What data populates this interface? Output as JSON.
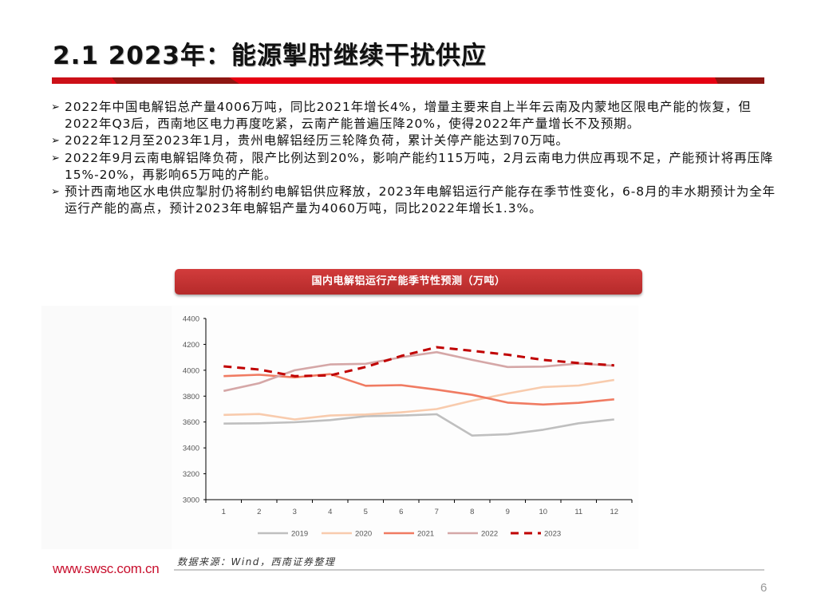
{
  "slide": {
    "title": "2.1 2023年：能源掣肘继续干扰供应",
    "page_number": "6",
    "colors": {
      "accent_red": "#e60012",
      "dark_red": "#8e1612",
      "banner_red": "#c43333",
      "url_red": "#c8102e"
    }
  },
  "bullets": [
    {
      "marker": "➢",
      "text": "2022年中国电解铝总产量4006万吨，同比2021年增长4%，增量主要来自上半年云南及内蒙地区限电产能的恢复，但2022年Q3后，西南地区电力再度吃紧，云南产能普遍压降20%，使得2022年产量增长不及预期。"
    },
    {
      "marker": "➢",
      "text": "2022年12月至2023年1月，贵州电解铝经历三轮降负荷，累计关停产能达到70万吨。"
    },
    {
      "marker": "➢",
      "text": "2022年9月云南电解铝降负荷，限产比例达到20%，影响产能约115万吨，2月云南电力供应再现不足，产能预计将再压降15%-20%，再影响65万吨的产能。"
    },
    {
      "marker": "➢",
      "text": "预计西南地区水电供应掣肘仍将制约电解铝供应释放，2023年电解铝运行产能存在季节性变化，6-8月的丰水期预计为全年运行产能的高点，预计2023年电解铝产量为4060万吨，同比2022年增长1.3%。"
    }
  ],
  "chart_data": {
    "type": "line",
    "title": "国内电解铝运行产能季节性预测（万吨）",
    "xlabel": "",
    "ylabel": "",
    "x": [
      "1",
      "2",
      "3",
      "4",
      "5",
      "6",
      "7",
      "8",
      "9",
      "10",
      "11",
      "12"
    ],
    "ylim": [
      3000,
      4400
    ],
    "yticks": [
      3000,
      3200,
      3400,
      3600,
      3800,
      4000,
      4200,
      4400
    ],
    "grid": false,
    "legend_position": "bottom",
    "series": [
      {
        "name": "2019",
        "color": "#bfbfbf",
        "dash": false,
        "values": [
          3588,
          3590,
          3598,
          3615,
          3645,
          3650,
          3660,
          3495,
          3505,
          3540,
          3590,
          3620
        ]
      },
      {
        "name": "2020",
        "color": "#f8cbad",
        "dash": false,
        "values": [
          3655,
          3662,
          3620,
          3650,
          3658,
          3675,
          3700,
          3765,
          3820,
          3870,
          3882,
          3925
        ]
      },
      {
        "name": "2021",
        "color": "#f07b62",
        "dash": false,
        "values": [
          3955,
          3965,
          3945,
          3970,
          3880,
          3885,
          3850,
          3810,
          3750,
          3735,
          3748,
          3775
        ]
      },
      {
        "name": "2022",
        "color": "#d5a7a7",
        "dash": false,
        "values": [
          3840,
          3900,
          4000,
          4045,
          4050,
          4100,
          4140,
          4080,
          4025,
          4028,
          4052,
          4035
        ]
      },
      {
        "name": "2023",
        "color": "#c00000",
        "dash": true,
        "values": [
          4030,
          4005,
          3955,
          3960,
          4025,
          4110,
          4178,
          4150,
          4120,
          4080,
          4055,
          4038
        ]
      }
    ]
  },
  "footer": {
    "website": "www.swsc.com.cn",
    "source": "数据来源：Wind，西南证券整理"
  }
}
